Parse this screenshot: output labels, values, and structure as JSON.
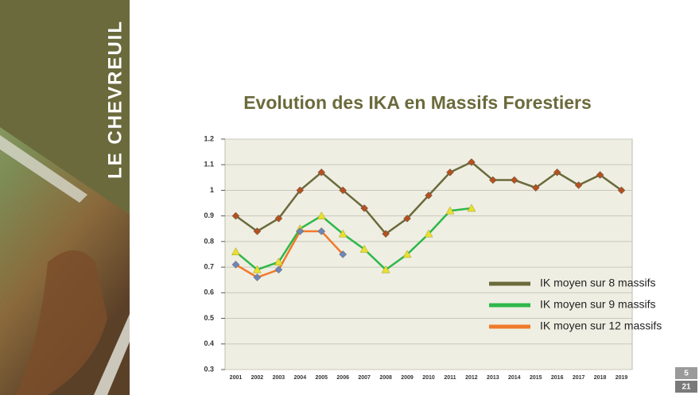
{
  "sidebar": {
    "title": "LE CHEVREUIL"
  },
  "page": {
    "number": "5",
    "total": "21"
  },
  "chart_data": {
    "type": "line",
    "title": "Evolution des IKA en Massifs Forestiers",
    "categories": [
      "2001",
      "2002",
      "2003",
      "2004",
      "2005",
      "2006",
      "2007",
      "2008",
      "2009",
      "2010",
      "2011",
      "2012",
      "2013",
      "2014",
      "2015",
      "2016",
      "2017",
      "2018",
      "2019"
    ],
    "series": [
      {
        "name": "IK moyen sur 8 massifs",
        "color": "#6b6a3c",
        "marker": "diamond",
        "marker_color": "#b4511f",
        "values": [
          0.9,
          0.84,
          0.89,
          1.0,
          1.07,
          1.0,
          0.93,
          0.83,
          0.89,
          0.98,
          1.07,
          1.11,
          1.04,
          1.04,
          1.01,
          1.07,
          1.02,
          1.06,
          1.0
        ]
      },
      {
        "name": "IK moyen sur 9 massifs",
        "color": "#2db84a",
        "marker": "triangle",
        "marker_color": "#e8e030",
        "values": [
          0.76,
          0.69,
          0.72,
          0.85,
          0.9,
          0.83,
          0.77,
          0.69,
          0.75,
          0.83,
          0.92,
          0.93,
          null,
          null,
          null,
          null,
          null,
          null,
          null
        ]
      },
      {
        "name": "IK moyen sur 12 massifs",
        "color": "#f07a2a",
        "marker": "diamond",
        "marker_color": "#6f86b8",
        "values": [
          0.71,
          0.66,
          0.69,
          0.84,
          0.84,
          0.75,
          null,
          null,
          null,
          null,
          null,
          null,
          null,
          null,
          null,
          null,
          null,
          null,
          null
        ]
      }
    ],
    "ylim": [
      0.3,
      1.2
    ],
    "yticks": [
      0.3,
      0.4,
      0.5,
      0.6,
      0.7,
      0.8,
      0.9,
      1,
      1.1,
      1.2
    ],
    "grid": true,
    "legend": "lower-right"
  }
}
